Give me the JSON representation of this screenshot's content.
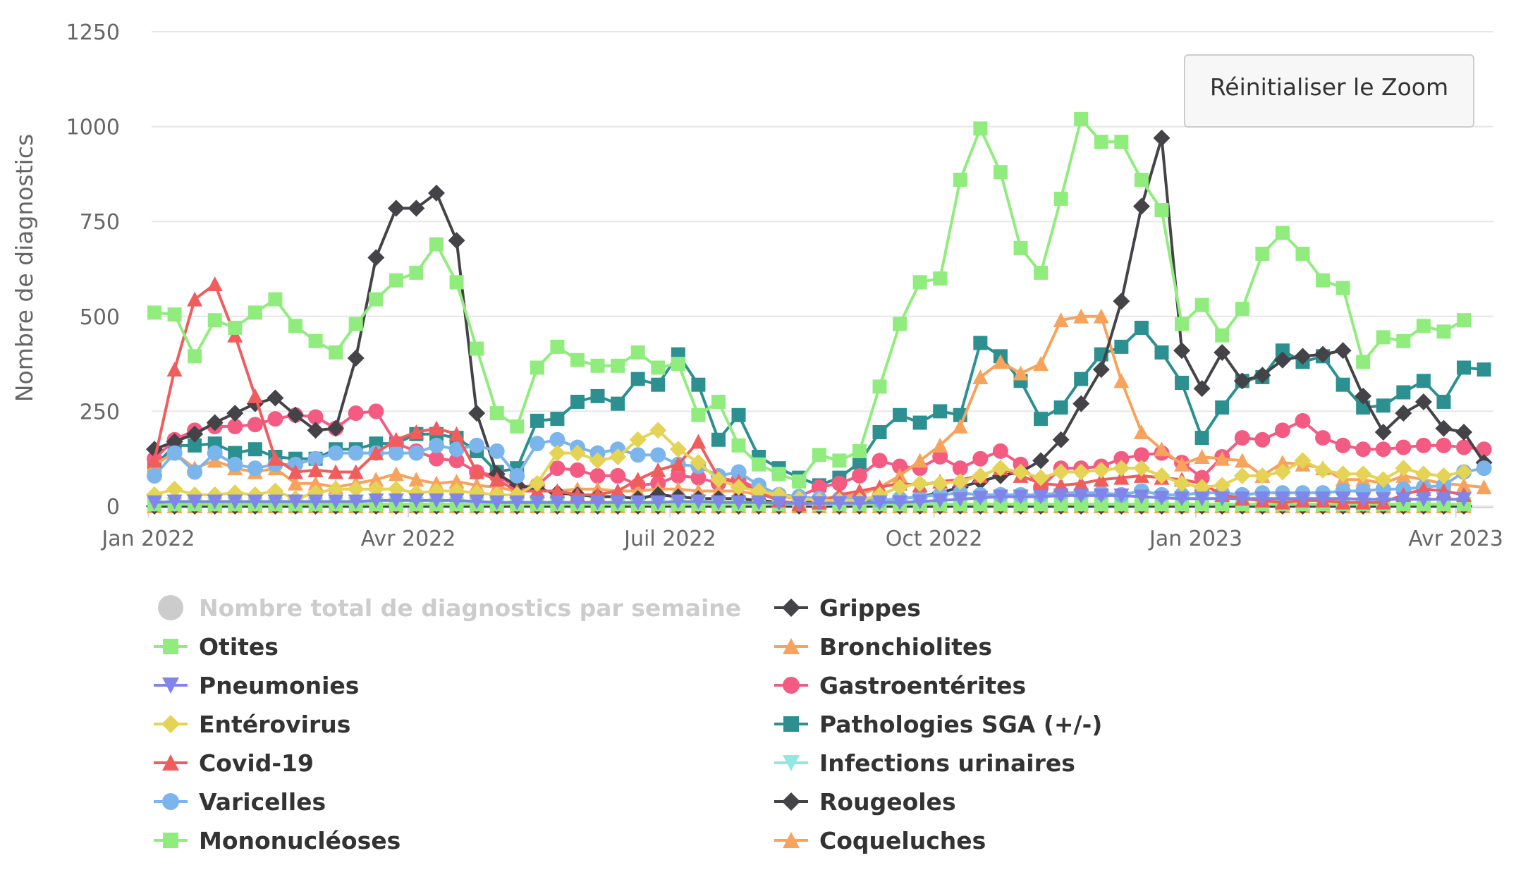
{
  "chart_data": {
    "type": "line",
    "title": "",
    "xlabel": "",
    "ylabel": "Nombre de diagnostics",
    "ylim": [
      0,
      1250
    ],
    "yticks": [
      0,
      250,
      500,
      750,
      1000,
      1250
    ],
    "x_start": "2022-01-03",
    "x_interval_days": 7,
    "xticks": [
      {
        "label": "Jan 2022",
        "week": -0.3
      },
      {
        "label": "Avr 2022",
        "week": 12.6
      },
      {
        "label": "Juil 2022",
        "week": 25.6
      },
      {
        "label": "Oct 2022",
        "week": 38.7
      },
      {
        "label": "Jan 2023",
        "week": 51.7
      },
      {
        "label": "Avr 2023",
        "week": 64.6
      }
    ],
    "grid": true,
    "reset_zoom_label": "Réinitialiser le Zoom",
    "series": [
      {
        "name": "Nombre total de diagnostics par semaine",
        "color": "#cccccc",
        "marker": "circle",
        "visible": false,
        "values": []
      },
      {
        "name": "Otites",
        "color": "#90ed7d",
        "marker": "square",
        "visible": true,
        "values": [
          510,
          505,
          395,
          490,
          470,
          510,
          545,
          475,
          435,
          405,
          480,
          545,
          595,
          615,
          690,
          590,
          415,
          245,
          210,
          365,
          420,
          385,
          370,
          370,
          405,
          365,
          375,
          240,
          275,
          160,
          110,
          85,
          65,
          135,
          120,
          145,
          315,
          480,
          590,
          600,
          860,
          995,
          880,
          680,
          615,
          810,
          1020,
          960,
          960,
          860,
          780,
          480,
          530,
          450,
          520,
          665,
          720,
          665,
          595,
          575,
          380,
          445,
          435,
          475,
          460,
          490
        ]
      },
      {
        "name": "Pneumonies",
        "color": "#8085e9",
        "marker": "triangle-down",
        "visible": true,
        "values": [
          10,
          12,
          12,
          12,
          12,
          12,
          12,
          12,
          12,
          12,
          12,
          15,
          15,
          15,
          15,
          15,
          12,
          10,
          10,
          10,
          10,
          10,
          10,
          10,
          10,
          10,
          12,
          12,
          10,
          10,
          10,
          8,
          8,
          8,
          8,
          8,
          10,
          10,
          12,
          15,
          18,
          22,
          25,
          25,
          25,
          28,
          28,
          28,
          28,
          25,
          22,
          20,
          20,
          20,
          20,
          20,
          20,
          20,
          20,
          20,
          18,
          18,
          18,
          18,
          18,
          18
        ]
      },
      {
        "name": "Entérovirus",
        "color": "#e4d354",
        "marker": "diamond",
        "visible": true,
        "values": [
          30,
          45,
          30,
          30,
          35,
          30,
          40,
          20,
          35,
          45,
          45,
          45,
          45,
          35,
          40,
          40,
          35,
          30,
          30,
          60,
          140,
          140,
          120,
          130,
          175,
          200,
          150,
          115,
          70,
          50,
          40,
          30,
          20,
          15,
          15,
          15,
          30,
          50,
          60,
          60,
          65,
          80,
          100,
          90,
          75,
          90,
          90,
          95,
          100,
          100,
          80,
          60,
          50,
          55,
          80,
          80,
          90,
          120,
          95,
          85,
          85,
          70,
          100,
          85,
          80,
          90
        ]
      },
      {
        "name": "Covid-19",
        "color": "#f15c5c",
        "marker": "triangle",
        "visible": true,
        "values": [
          120,
          360,
          545,
          585,
          450,
          290,
          125,
          90,
          95,
          90,
          90,
          140,
          175,
          195,
          205,
          190,
          90,
          70,
          40,
          40,
          40,
          30,
          30,
          40,
          70,
          95,
          110,
          170,
          75,
          65,
          35,
          15,
          5,
          10,
          30,
          40,
          50,
          60,
          55,
          65,
          70,
          80,
          100,
          80,
          60,
          55,
          60,
          70,
          75,
          80,
          75,
          70,
          60,
          30,
          20,
          15,
          10,
          15,
          15,
          10,
          10,
          10,
          30,
          45,
          40,
          30
        ]
      },
      {
        "name": "Varicelles",
        "color": "#7cb5ec",
        "marker": "circle",
        "visible": true,
        "values": [
          80,
          140,
          90,
          140,
          110,
          100,
          110,
          110,
          125,
          140,
          140,
          140,
          140,
          140,
          160,
          150,
          160,
          145,
          80,
          165,
          175,
          155,
          140,
          150,
          135,
          135,
          110,
          105,
          80,
          90,
          55,
          30,
          25,
          20,
          20,
          20,
          15,
          20,
          25,
          30,
          35,
          30,
          30,
          30,
          30,
          35,
          35,
          35,
          30,
          40,
          30,
          30,
          35,
          35,
          30,
          35,
          35,
          35,
          35,
          40,
          40,
          45,
          45,
          50,
          55,
          90,
          100
        ]
      },
      {
        "name": "Mononucléoses",
        "color": "#90ed7d",
        "marker": "square",
        "visible": true,
        "values": [
          5,
          5,
          5,
          5,
          5,
          5,
          5,
          5,
          5,
          5,
          5,
          5,
          5,
          5,
          5,
          5,
          5,
          5,
          5,
          5,
          5,
          5,
          5,
          5,
          5,
          5,
          5,
          5,
          5,
          5,
          5,
          5,
          5,
          5,
          5,
          5,
          5,
          5,
          5,
          5,
          5,
          5,
          5,
          5,
          5,
          5,
          5,
          5,
          5,
          5,
          5,
          5,
          5,
          5,
          5,
          5,
          5,
          5,
          5,
          5,
          5,
          5,
          5,
          5,
          5,
          5
        ]
      },
      {
        "name": "Grippes",
        "color": "#434348",
        "marker": "diamond",
        "visible": true,
        "values": [
          150,
          170,
          190,
          220,
          245,
          270,
          285,
          240,
          200,
          205,
          390,
          655,
          785,
          785,
          825,
          700,
          245,
          85,
          55,
          45,
          35,
          30,
          25,
          25,
          20,
          30,
          25,
          20,
          20,
          20,
          15,
          10,
          10,
          10,
          15,
          15,
          15,
          20,
          25,
          35,
          50,
          65,
          80,
          90,
          120,
          175,
          270,
          360,
          540,
          790,
          970,
          410,
          310,
          405,
          330,
          345,
          385,
          395,
          400,
          410,
          290,
          195,
          245,
          275,
          205,
          195,
          115
        ]
      },
      {
        "name": "Bronchiolites",
        "color": "#f7a35c",
        "marker": "triangle",
        "visible": true,
        "values": [
          110,
          140,
          100,
          120,
          100,
          90,
          100,
          60,
          60,
          50,
          60,
          70,
          85,
          70,
          60,
          65,
          55,
          50,
          40,
          40,
          40,
          45,
          45,
          40,
          40,
          45,
          45,
          40,
          40,
          40,
          30,
          25,
          20,
          20,
          25,
          30,
          50,
          80,
          120,
          160,
          210,
          340,
          380,
          350,
          375,
          490,
          500,
          500,
          330,
          195,
          150,
          110,
          130,
          125,
          120,
          80,
          115,
          110,
          100,
          70,
          70,
          60,
          80,
          70,
          60,
          55,
          50
        ]
      },
      {
        "name": "Gastroentérites",
        "color": "#f45b82",
        "marker": "circle",
        "visible": true,
        "values": [
          125,
          175,
          200,
          210,
          210,
          215,
          230,
          240,
          235,
          205,
          245,
          250,
          165,
          145,
          125,
          120,
          90,
          80,
          50,
          55,
          100,
          95,
          80,
          80,
          55,
          60,
          80,
          75,
          60,
          70,
          45,
          30,
          25,
          50,
          60,
          80,
          120,
          105,
          100,
          130,
          100,
          125,
          145,
          110,
          50,
          100,
          100,
          105,
          125,
          135,
          140,
          115,
          75,
          130,
          180,
          175,
          200,
          225,
          180,
          160,
          150,
          150,
          155,
          160,
          160,
          155,
          150
        ]
      },
      {
        "name": "Pathologies SGA (+/-)",
        "color": "#2b908f",
        "marker": "square",
        "visible": true,
        "values": [
          105,
          160,
          160,
          165,
          140,
          150,
          130,
          125,
          125,
          150,
          150,
          165,
          165,
          190,
          190,
          180,
          145,
          90,
          100,
          225,
          230,
          275,
          290,
          270,
          335,
          320,
          400,
          320,
          175,
          240,
          130,
          100,
          75,
          55,
          75,
          115,
          195,
          240,
          220,
          250,
          240,
          430,
          395,
          330,
          230,
          260,
          335,
          400,
          420,
          470,
          405,
          325,
          180,
          260,
          330,
          340,
          410,
          380,
          395,
          320,
          260,
          265,
          300,
          330,
          275,
          365,
          360
        ]
      },
      {
        "name": "Infections urinaires",
        "color": "#91e8e1",
        "marker": "triangle-down",
        "visible": true,
        "values": [
          5,
          5,
          5,
          5,
          5,
          5,
          5,
          5,
          5,
          5,
          5,
          5,
          5,
          5,
          5,
          5,
          5,
          5,
          5,
          5,
          5,
          5,
          5,
          5,
          5,
          5,
          5,
          5,
          5,
          5,
          5,
          5,
          5,
          5,
          5,
          5,
          5,
          5,
          5,
          5,
          5,
          5,
          5,
          5,
          5,
          5,
          5,
          5,
          5,
          5,
          5,
          5,
          5,
          5,
          5,
          5,
          5,
          5,
          5,
          5,
          5,
          5,
          5,
          5,
          5,
          5
        ]
      },
      {
        "name": "Rougeoles",
        "color": "#434348",
        "marker": "diamond",
        "visible": true,
        "values": [
          0,
          0,
          0,
          0,
          0,
          0,
          0,
          0,
          0,
          0,
          0,
          0,
          0,
          0,
          0,
          0,
          0,
          0,
          0,
          0,
          0,
          0,
          0,
          0,
          0,
          0,
          0,
          0,
          0,
          0,
          0,
          0,
          0,
          0,
          0,
          0,
          0,
          0,
          0,
          0,
          0,
          0,
          0,
          0,
          0,
          0,
          0,
          0,
          0,
          0,
          0,
          0,
          0,
          0,
          0,
          0,
          0,
          0,
          0,
          0,
          0,
          0,
          0,
          0,
          0,
          0
        ]
      },
      {
        "name": "Coqueluches",
        "color": "#f7a35c",
        "marker": "triangle",
        "visible": true,
        "values": [
          0,
          0,
          0,
          0,
          0,
          0,
          0,
          0,
          0,
          0,
          0,
          0,
          0,
          0,
          0,
          0,
          0,
          0,
          0,
          0,
          0,
          0,
          0,
          0,
          0,
          0,
          0,
          0,
          0,
          0,
          0,
          0,
          0,
          0,
          0,
          0,
          0,
          0,
          0,
          0,
          0,
          0,
          0,
          0,
          0,
          0,
          0,
          0,
          0,
          0,
          0,
          0,
          0,
          0,
          0,
          0,
          0,
          0,
          0,
          0,
          0,
          0,
          0,
          0,
          0,
          0
        ]
      }
    ]
  }
}
